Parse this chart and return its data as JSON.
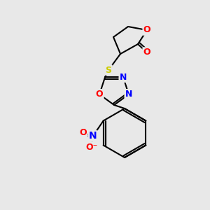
{
  "bg_color": "#e8e8e8",
  "bond_color": "#000000",
  "bond_width": 1.5,
  "atom_colors": {
    "O": "#ff0000",
    "N": "#0000ff",
    "S": "#cccc00",
    "C": "#000000"
  },
  "font_size": 9
}
